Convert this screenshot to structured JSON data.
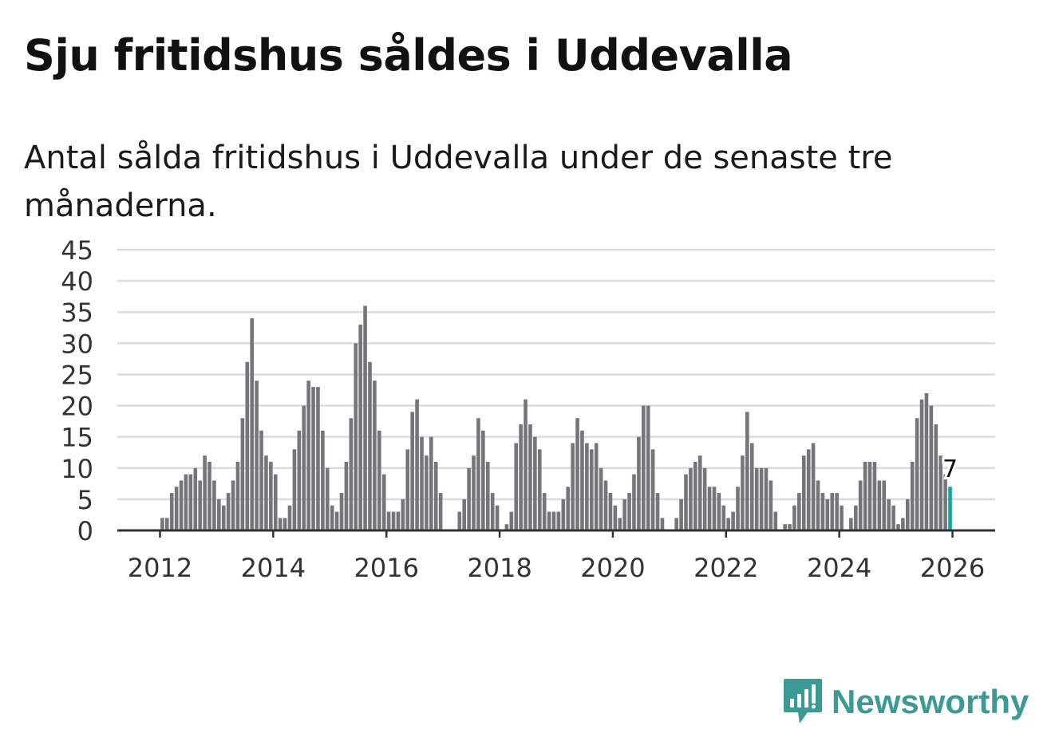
{
  "title": "Sju fritidshus såldes i Uddevalla",
  "subtitle": "Antal sålda fritidshus i Uddevalla under de senaste tre månaderna.",
  "brand": {
    "name": "Newsworthy",
    "color": "#3b9a94",
    "icon": "newsworthy-logo-icon"
  },
  "colors": {
    "bar": "#76767a",
    "highlight": "#1aa39a",
    "grid": "#dcdcdc",
    "axis": "#333333"
  },
  "chart_data": {
    "type": "bar",
    "title": "Sju fritidshus såldes i Uddevalla",
    "subtitle": "Antal sålda fritidshus i Uddevalla under de senaste tre månaderna.",
    "xlabel": "",
    "ylabel": "",
    "ylim": [
      0,
      45
    ],
    "yticks": [
      0,
      5,
      10,
      15,
      20,
      25,
      30,
      35,
      40,
      45
    ],
    "xticks": [
      "2012",
      "2014",
      "2016",
      "2018",
      "2020",
      "2022",
      "2024",
      "2026"
    ],
    "grid": true,
    "start": "2011-01",
    "end": "2026-01",
    "last_value_label": "7",
    "values": [
      0,
      0,
      0,
      0,
      0,
      0,
      0,
      0,
      0,
      0,
      0,
      0,
      2,
      2,
      6,
      7,
      8,
      9,
      9,
      10,
      8,
      12,
      11,
      8,
      5,
      4,
      6,
      8,
      11,
      18,
      27,
      34,
      24,
      16,
      12,
      11,
      9,
      2,
      2,
      4,
      13,
      16,
      20,
      24,
      23,
      23,
      16,
      10,
      4,
      3,
      6,
      11,
      18,
      30,
      33,
      36,
      27,
      24,
      16,
      9,
      3,
      3,
      3,
      5,
      13,
      19,
      21,
      15,
      12,
      15,
      11,
      6,
      0,
      0,
      0,
      3,
      5,
      10,
      12,
      18,
      16,
      11,
      6,
      4,
      0,
      1,
      3,
      14,
      17,
      21,
      17,
      15,
      13,
      6,
      3,
      3,
      3,
      5,
      7,
      14,
      18,
      16,
      14,
      13,
      14,
      10,
      8,
      6,
      4,
      2,
      5,
      6,
      9,
      15,
      20,
      20,
      13,
      6,
      2,
      0,
      0,
      2,
      5,
      9,
      10,
      11,
      12,
      10,
      7,
      7,
      6,
      4,
      2,
      3,
      7,
      12,
      19,
      14,
      10,
      10,
      10,
      8,
      3,
      0,
      1,
      1,
      4,
      6,
      12,
      13,
      14,
      8,
      6,
      5,
      6,
      6,
      4,
      0,
      2,
      4,
      8,
      11,
      11,
      11,
      8,
      8,
      5,
      4,
      1,
      2,
      5,
      11,
      18,
      21,
      22,
      20,
      17,
      12,
      9,
      7
    ]
  }
}
